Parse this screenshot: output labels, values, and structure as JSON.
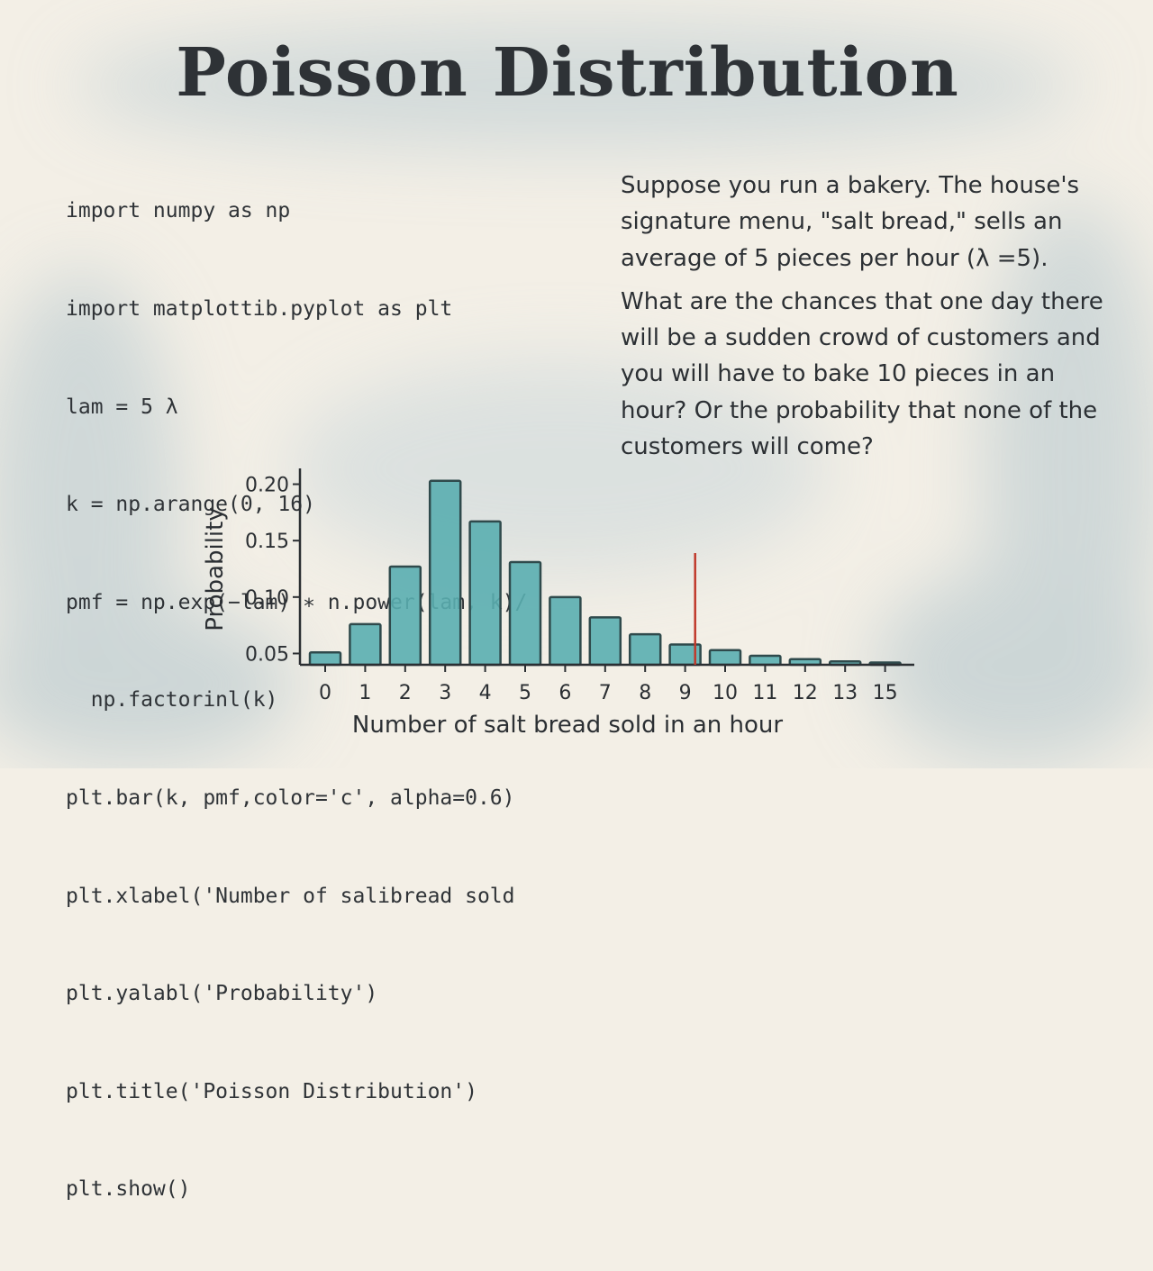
{
  "title": "Poisson Distribution",
  "code_lines": [
    "import numpy as np",
    "import matplottib.pyplot as plt",
    "lam = 5 λ",
    "k = np.arange(0, 16)",
    "pmf = np.exp(−lam) ∗ n.power(lam, k)/",
    "  np.factorinl(k)",
    "plt.bar(k, pmf,color='c', alpha=0.6)",
    "plt.xlabel('Number of salibread sold",
    "plt.yalabl('Probability')",
    "plt.title('Poisson Distribution')",
    "plt.show()"
  ],
  "story": {
    "paragraph1": "Suppose you run a bakery. The house's signature menu, \"salt bread,\" sells an average of 5 pieces per hour (λ =5).",
    "paragraph2": "What are the chances that one day there will be a sudden crowd of customers and you will have to bake 10 pieces in an hour? Or the probability that none of the customers will come?"
  },
  "colors": {
    "bar_fill": "#5aaeb0",
    "bar_stroke": "#2f4a4c",
    "axis": "#2b2f33",
    "marker_line": "#c0392b",
    "background": "#f3efe6",
    "wash": "#a9bfc8"
  },
  "chart_data": {
    "type": "bar",
    "xlabel": "Number of salt bread sold in an hour",
    "ylabel": "Probability",
    "categories": [
      "0",
      "1",
      "2",
      "3",
      "4",
      "5",
      "6",
      "7",
      "8",
      "9",
      "10",
      "11",
      "12",
      "13",
      "15"
    ],
    "values": [
      0.051,
      0.076,
      0.127,
      0.203,
      0.167,
      0.131,
      0.1,
      0.082,
      0.067,
      0.058,
      0.053,
      0.048,
      0.045,
      0.043,
      0.042
    ],
    "yticks": [
      "0.20",
      "0.15",
      "0.10",
      "0.05"
    ],
    "ytick_values": [
      0.2,
      0.15,
      0.1,
      0.05
    ],
    "ylim": [
      0.04,
      0.21
    ],
    "vertical_marker_x": 9.25,
    "grid": false,
    "legend": "none"
  }
}
